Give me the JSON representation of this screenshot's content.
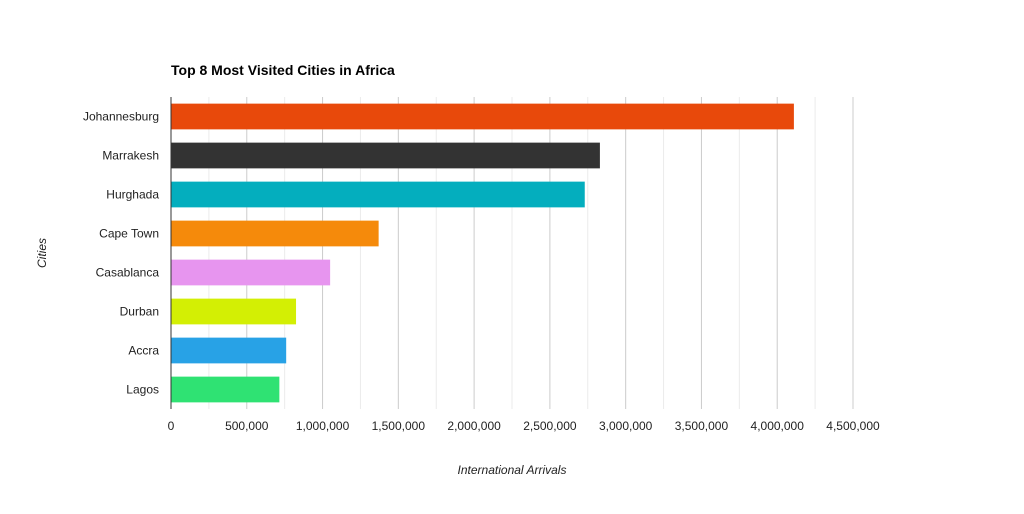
{
  "chart_data": {
    "type": "bar",
    "orientation": "horizontal",
    "title": "Top 8 Most Visited Cities in Africa",
    "xlabel": "International Arrivals",
    "ylabel": "Cities",
    "categories": [
      "Johannesburg",
      "Marrakesh",
      "Hurghada",
      "Cape Town",
      "Casablanca",
      "Durban",
      "Accra",
      "Lagos"
    ],
    "values": [
      4110000,
      2830000,
      2730000,
      1370000,
      1050000,
      825000,
      760000,
      715000
    ],
    "colors": [
      "#e8490b",
      "#333333",
      "#04aebe",
      "#f58a0b",
      "#e795ef",
      "#d3ef04",
      "#28a2e6",
      "#2fe273"
    ],
    "xlim": [
      0,
      4500000
    ],
    "xticks": [
      0,
      500000,
      1000000,
      1500000,
      2000000,
      2500000,
      3000000,
      3500000,
      4000000,
      4500000
    ],
    "xtick_labels": [
      "0",
      "500,000",
      "1,000,000",
      "1,500,000",
      "2,000,000",
      "2,500,000",
      "3,000,000",
      "3,500,000",
      "4,000,000",
      "4,500,000"
    ],
    "grid": true,
    "legend": "none"
  }
}
